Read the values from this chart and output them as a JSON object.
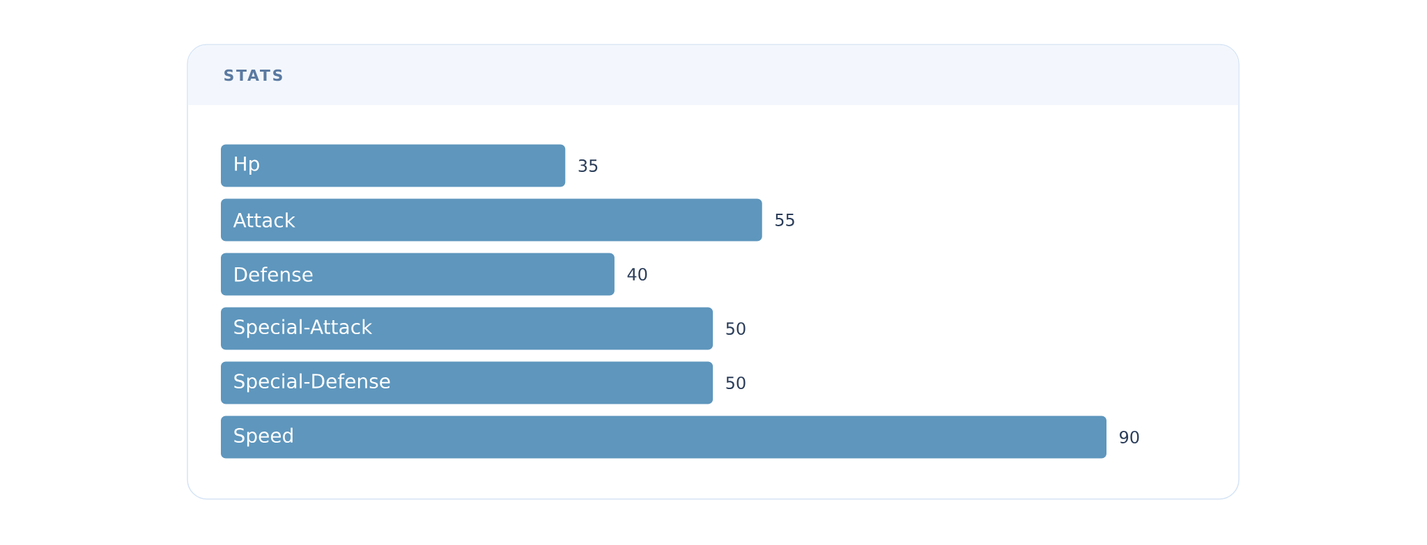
{
  "chart_data": {
    "type": "bar",
    "orientation": "horizontal",
    "title": "STATS",
    "categories": [
      "Hp",
      "Attack",
      "Defense",
      "Special-Attack",
      "Special-Defense",
      "Speed"
    ],
    "values": [
      35,
      55,
      40,
      50,
      50,
      90
    ],
    "color": "#5e96bd",
    "data_labels": true
  }
}
